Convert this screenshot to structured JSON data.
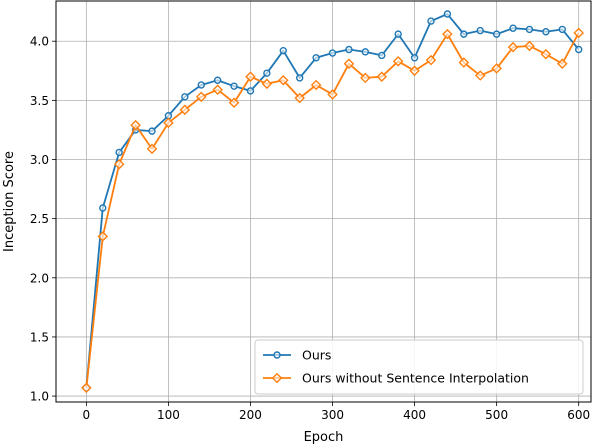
{
  "chart_data": {
    "type": "line",
    "xlabel": "Epoch",
    "ylabel": "Inception Score",
    "xlim": [
      -37,
      615
    ],
    "ylim": [
      0.95,
      4.34
    ],
    "xticks": [
      0,
      100,
      200,
      300,
      400,
      500,
      600
    ],
    "yticks": [
      1.0,
      1.5,
      2.0,
      2.5,
      3.0,
      3.5,
      4.0
    ],
    "grid": true,
    "legend_position": "lower-right",
    "x": [
      0,
      20,
      40,
      60,
      80,
      100,
      120,
      140,
      160,
      180,
      200,
      220,
      240,
      260,
      280,
      300,
      320,
      340,
      360,
      380,
      400,
      420,
      440,
      460,
      480,
      500,
      520,
      540,
      560,
      580,
      600
    ],
    "series": [
      {
        "name": "Ours",
        "color": "#1f77b4",
        "marker": "circle",
        "values": [
          1.07,
          2.59,
          3.06,
          3.25,
          3.24,
          3.37,
          3.53,
          3.63,
          3.67,
          3.62,
          3.58,
          3.73,
          3.92,
          3.69,
          3.86,
          3.9,
          3.93,
          3.91,
          3.88,
          4.06,
          3.86,
          4.17,
          4.23,
          4.06,
          4.09,
          4.06,
          4.11,
          4.1,
          4.08,
          4.1,
          3.93
        ]
      },
      {
        "name": "Ours without Sentence Interpolation",
        "color": "#ff7f0e",
        "marker": "diamond",
        "values": [
          1.07,
          2.35,
          2.96,
          3.29,
          3.09,
          3.31,
          3.42,
          3.53,
          3.59,
          3.48,
          3.7,
          3.64,
          3.67,
          3.52,
          3.63,
          3.55,
          3.81,
          3.69,
          3.7,
          3.83,
          3.75,
          3.84,
          4.06,
          3.82,
          3.71,
          3.77,
          3.95,
          3.96,
          3.89,
          3.81,
          4.07
        ]
      }
    ]
  }
}
